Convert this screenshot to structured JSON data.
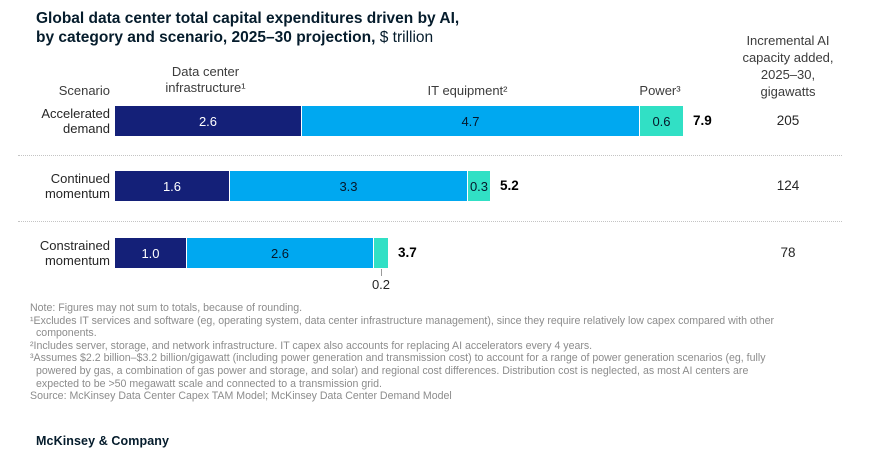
{
  "title": {
    "line1": "Global data center total capital expenditures driven by AI,",
    "line2_bold": "by category and scenario, 2025–30 projection,",
    "line2_unit": " $ trillion"
  },
  "columns": {
    "scenario": "Scenario",
    "infrastructure_line1": "Data center",
    "infrastructure_line2": "infrastructure¹",
    "it_equipment": "IT equipment²",
    "power": "Power³",
    "capacity_lines": [
      "Incremental AI",
      "capacity added,",
      "2025–30,",
      "gigawatts"
    ]
  },
  "chart_data": {
    "type": "bar",
    "orientation": "horizontal",
    "stacked": true,
    "unit": "$ trillion",
    "categories": [
      "Accelerated demand",
      "Continued momentum",
      "Constrained momentum"
    ],
    "series": [
      {
        "name": "Data center infrastructure",
        "values": [
          2.6,
          1.6,
          1.0
        ],
        "color": "#142078",
        "label_color": "#ffffff"
      },
      {
        "name": "IT equipment",
        "values": [
          4.7,
          3.3,
          2.6
        ],
        "color": "#00A8F0",
        "label_color": "#05182b"
      },
      {
        "name": "Power",
        "values": [
          0.6,
          0.3,
          0.2
        ],
        "color": "#31E0C5",
        "label_color": "#05182b"
      }
    ],
    "totals": [
      7.9,
      5.2,
      3.7
    ],
    "capacity_column_values": [
      205,
      124,
      78
    ],
    "value_label_decimals": 1
  },
  "footnotes": [
    "Note: Figures may not sum to totals, because of rounding.",
    "¹Excludes IT services and software (eg, operating system, data center infrastructure management), since they require relatively low capex compared with other\ncomponents.",
    "²Includes server, storage, and network infrastructure. IT capex also accounts for replacing AI accelerators every 4 years.",
    "³Assumes $2.2 billion–$3.2 billion/gigawatt (including power generation and transmission cost) to account for a range of power generation scenarios (eg, fully\npowered by gas, a combination of gas power and storage, and solar) and regional cost differences. Distribution cost is neglected, as most AI centers are\nexpected to be >50 megawatt scale and connected to a transmission grid.",
    "Source: McKinsey Data Center Capex TAM Model; McKinsey Data Center Demand Model"
  ],
  "footer": {
    "logo": "McKinsey & Company"
  }
}
